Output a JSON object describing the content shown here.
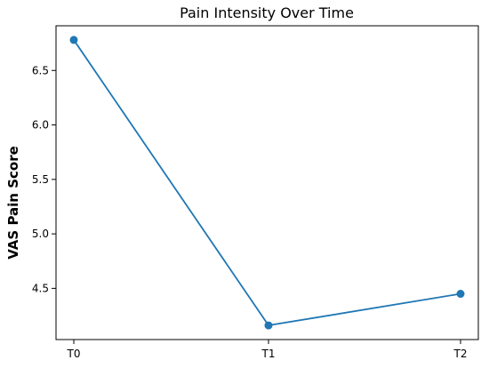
{
  "chart_data": {
    "type": "line",
    "title": "Pain Intensity Over Time",
    "xlabel": "",
    "ylabel": "VAS Pain Score",
    "categories": [
      "T0",
      "T1",
      "T2"
    ],
    "series": [
      {
        "values": [
          6.78,
          4.16,
          4.45
        ],
        "color": "#1f77b4"
      }
    ],
    "ylim": [
      4.03,
      6.91
    ],
    "yticks": [
      4.5,
      5.0,
      5.5,
      6.0,
      6.5
    ],
    "ytick_labels": [
      "4.5",
      "5.0",
      "5.5",
      "6.0",
      "6.5"
    ],
    "grid": false,
    "markers": true
  }
}
